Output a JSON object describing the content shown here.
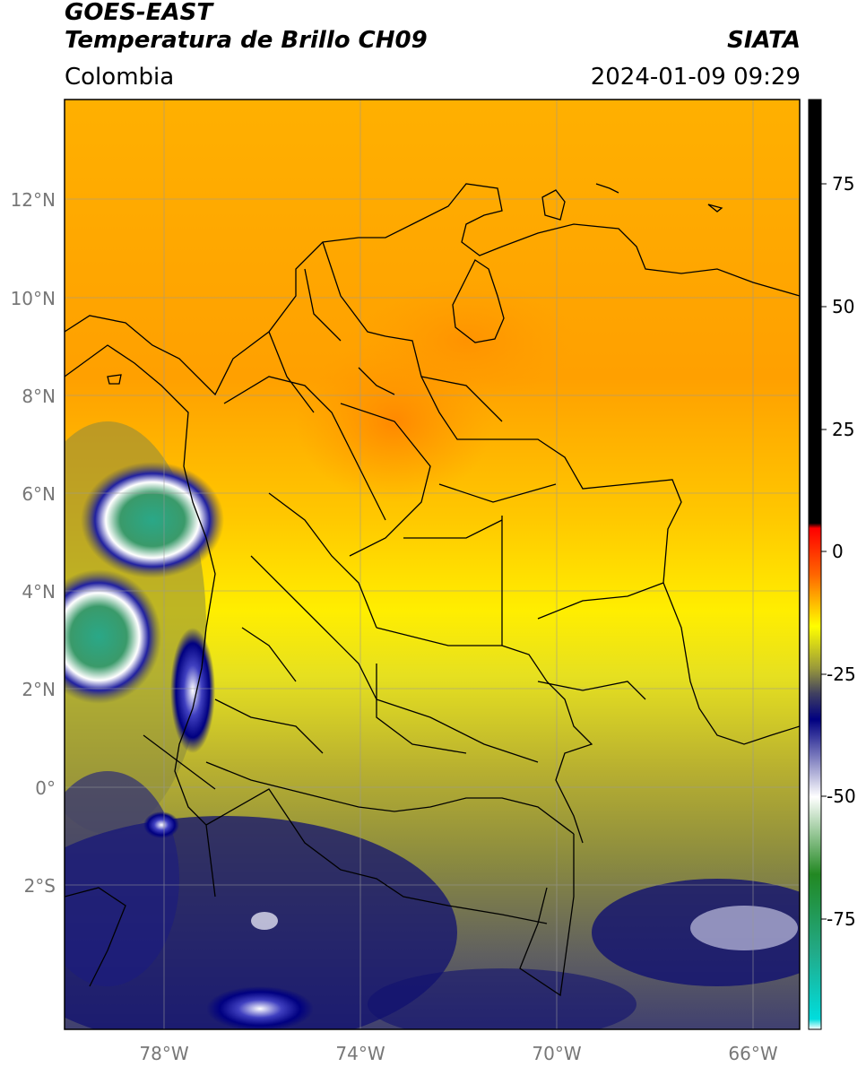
{
  "header": {
    "title_line1": "GOES-EAST",
    "title_line2": "Temperatura de Brillo CH09",
    "brand": "SIATA",
    "region": "Colombia",
    "datetime": "2024-01-09 09:29"
  },
  "axes": {
    "lat_ticks": [
      "12°N",
      "10°N",
      "8°N",
      "6°N",
      "4°N",
      "2°N",
      "0°",
      "2°S"
    ],
    "lon_ticks": [
      "78°W",
      "74°W",
      "70°W",
      "66°W"
    ]
  },
  "colorbar": {
    "ticks": [
      "75",
      "50",
      "25",
      "0",
      "-25",
      "-50",
      "-75"
    ],
    "stops": [
      {
        "value": 90,
        "color": "#000000"
      },
      {
        "value": 8,
        "color": "#000000"
      },
      {
        "value": 7,
        "color": "#ff0000"
      },
      {
        "value": -2,
        "color": "#ff6600"
      },
      {
        "value": -12,
        "color": "#ffff00"
      },
      {
        "value": -20,
        "color": "#9a9a3a"
      },
      {
        "value": -25,
        "color": "#404060"
      },
      {
        "value": -30,
        "color": "#000080"
      },
      {
        "value": -45,
        "color": "#ffffff"
      },
      {
        "value": -60,
        "color": "#228822"
      },
      {
        "value": -75,
        "color": "#22aa88"
      },
      {
        "value": -88,
        "color": "#00dddd"
      },
      {
        "value": -90,
        "color": "#ffffff"
      }
    ]
  }
}
